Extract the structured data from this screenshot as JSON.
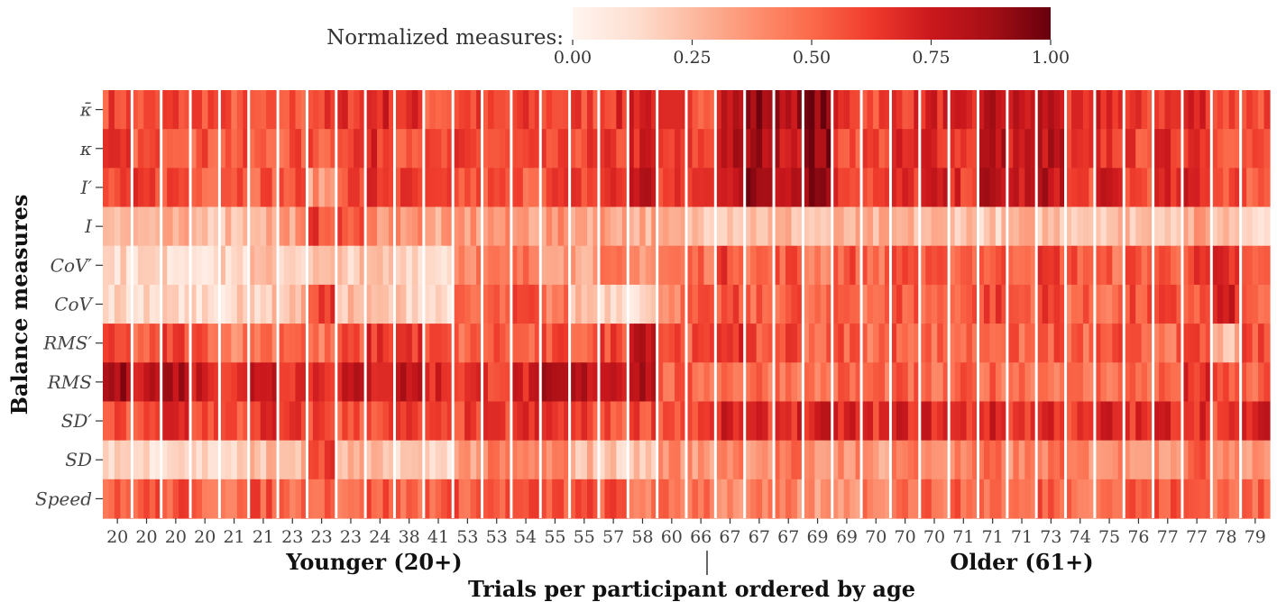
{
  "chart_data": {
    "type": "heatmap",
    "colorbar": {
      "label": "Normalized measures:",
      "ticks": [
        "0.00",
        "0.25",
        "0.50",
        "0.75",
        "1.00"
      ],
      "range": [
        0,
        1
      ],
      "colormap": "Reds",
      "position": "top-center"
    },
    "ylabel": "Balance measures",
    "xlabel": "Trials per participant ordered by age",
    "group_labels": [
      "Younger (20+)",
      "Older (61+)"
    ],
    "rows": [
      "κ̄",
      "κ",
      "I′",
      "I",
      "CoV′",
      "CoV",
      "RMS′",
      "RMS",
      "SD′",
      "SD",
      "Speed"
    ],
    "participant_ages": [
      20,
      20,
      20,
      20,
      21,
      21,
      23,
      23,
      23,
      24,
      38,
      41,
      53,
      53,
      54,
      55,
      55,
      57,
      58,
      60,
      66,
      67,
      67,
      67,
      69,
      69,
      70,
      70,
      70,
      71,
      71,
      71,
      73,
      74,
      75,
      76,
      77,
      77,
      78,
      79
    ],
    "participant_mean_values": [
      [
        0.6,
        0.55,
        0.6,
        0.6,
        0.55,
        0.5,
        0.55,
        0.6,
        0.65,
        0.7,
        0.65,
        0.55,
        0.6,
        0.55,
        0.6,
        0.6,
        0.6,
        0.65,
        0.75,
        0.6,
        0.6,
        0.8,
        0.9,
        0.85,
        0.95,
        0.65,
        0.6,
        0.65,
        0.7,
        0.65,
        0.8,
        0.75,
        0.8,
        0.6,
        0.7,
        0.6,
        0.65,
        0.7,
        0.6,
        0.6
      ],
      [
        0.6,
        0.55,
        0.6,
        0.55,
        0.55,
        0.5,
        0.55,
        0.55,
        0.65,
        0.65,
        0.6,
        0.55,
        0.6,
        0.55,
        0.55,
        0.55,
        0.6,
        0.6,
        0.7,
        0.6,
        0.6,
        0.8,
        0.85,
        0.8,
        0.9,
        0.6,
        0.6,
        0.65,
        0.7,
        0.65,
        0.8,
        0.75,
        0.8,
        0.6,
        0.65,
        0.6,
        0.65,
        0.7,
        0.6,
        0.55
      ],
      [
        0.55,
        0.6,
        0.6,
        0.55,
        0.6,
        0.55,
        0.55,
        0.35,
        0.6,
        0.65,
        0.6,
        0.55,
        0.55,
        0.55,
        0.55,
        0.6,
        0.6,
        0.65,
        0.8,
        0.6,
        0.65,
        0.8,
        0.9,
        0.85,
        0.95,
        0.65,
        0.6,
        0.65,
        0.7,
        0.65,
        0.8,
        0.75,
        0.8,
        0.6,
        0.7,
        0.6,
        0.65,
        0.7,
        0.6,
        0.55
      ],
      [
        0.3,
        0.25,
        0.25,
        0.25,
        0.25,
        0.3,
        0.35,
        0.6,
        0.55,
        0.4,
        0.4,
        0.3,
        0.35,
        0.35,
        0.35,
        0.35,
        0.35,
        0.35,
        0.3,
        0.25,
        0.25,
        0.25,
        0.25,
        0.25,
        0.2,
        0.25,
        0.25,
        0.25,
        0.25,
        0.25,
        0.2,
        0.25,
        0.25,
        0.25,
        0.25,
        0.25,
        0.25,
        0.3,
        0.25,
        0.2
      ],
      [
        0.15,
        0.15,
        0.15,
        0.15,
        0.15,
        0.2,
        0.2,
        0.2,
        0.2,
        0.2,
        0.2,
        0.15,
        0.45,
        0.4,
        0.45,
        0.4,
        0.35,
        0.4,
        0.4,
        0.45,
        0.5,
        0.6,
        0.5,
        0.55,
        0.45,
        0.55,
        0.5,
        0.6,
        0.5,
        0.55,
        0.55,
        0.55,
        0.6,
        0.55,
        0.5,
        0.55,
        0.55,
        0.6,
        0.65,
        0.5
      ],
      [
        0.15,
        0.15,
        0.15,
        0.15,
        0.15,
        0.2,
        0.25,
        0.6,
        0.25,
        0.2,
        0.2,
        0.15,
        0.45,
        0.5,
        0.55,
        0.45,
        0.25,
        0.2,
        0.15,
        0.45,
        0.5,
        0.55,
        0.5,
        0.55,
        0.45,
        0.55,
        0.5,
        0.55,
        0.5,
        0.55,
        0.6,
        0.55,
        0.6,
        0.5,
        0.5,
        0.55,
        0.55,
        0.55,
        0.7,
        0.5
      ],
      [
        0.55,
        0.5,
        0.6,
        0.55,
        0.45,
        0.5,
        0.55,
        0.45,
        0.55,
        0.65,
        0.65,
        0.55,
        0.5,
        0.55,
        0.5,
        0.55,
        0.55,
        0.6,
        0.85,
        0.6,
        0.55,
        0.7,
        0.55,
        0.6,
        0.5,
        0.55,
        0.5,
        0.55,
        0.5,
        0.5,
        0.55,
        0.5,
        0.55,
        0.5,
        0.55,
        0.5,
        0.5,
        0.55,
        0.25,
        0.55
      ],
      [
        0.85,
        0.8,
        0.85,
        0.75,
        0.65,
        0.8,
        0.7,
        0.7,
        0.75,
        0.75,
        0.8,
        0.7,
        0.65,
        0.65,
        0.7,
        0.8,
        0.8,
        0.8,
        0.85,
        0.5,
        0.5,
        0.5,
        0.5,
        0.5,
        0.45,
        0.5,
        0.5,
        0.5,
        0.45,
        0.5,
        0.5,
        0.5,
        0.5,
        0.45,
        0.5,
        0.5,
        0.5,
        0.65,
        0.55,
        0.5
      ],
      [
        0.55,
        0.55,
        0.7,
        0.6,
        0.55,
        0.65,
        0.6,
        0.6,
        0.55,
        0.6,
        0.6,
        0.55,
        0.6,
        0.6,
        0.65,
        0.65,
        0.6,
        0.55,
        0.6,
        0.6,
        0.6,
        0.7,
        0.65,
        0.7,
        0.7,
        0.7,
        0.65,
        0.7,
        0.7,
        0.65,
        0.7,
        0.65,
        0.7,
        0.6,
        0.7,
        0.65,
        0.7,
        0.7,
        0.6,
        0.7
      ],
      [
        0.2,
        0.15,
        0.2,
        0.15,
        0.15,
        0.25,
        0.25,
        0.6,
        0.25,
        0.2,
        0.2,
        0.15,
        0.35,
        0.4,
        0.4,
        0.4,
        0.25,
        0.2,
        0.2,
        0.4,
        0.35,
        0.45,
        0.4,
        0.45,
        0.35,
        0.4,
        0.35,
        0.45,
        0.4,
        0.4,
        0.45,
        0.4,
        0.45,
        0.4,
        0.4,
        0.4,
        0.4,
        0.5,
        0.45,
        0.4
      ],
      [
        0.5,
        0.55,
        0.55,
        0.5,
        0.5,
        0.55,
        0.5,
        0.55,
        0.5,
        0.55,
        0.5,
        0.55,
        0.55,
        0.55,
        0.55,
        0.55,
        0.55,
        0.55,
        0.45,
        0.45,
        0.5,
        0.4,
        0.4,
        0.4,
        0.35,
        0.4,
        0.45,
        0.5,
        0.5,
        0.5,
        0.5,
        0.45,
        0.55,
        0.5,
        0.5,
        0.55,
        0.55,
        0.55,
        0.5,
        0.5
      ]
    ],
    "trials_per_participant": 5,
    "grid": false
  }
}
